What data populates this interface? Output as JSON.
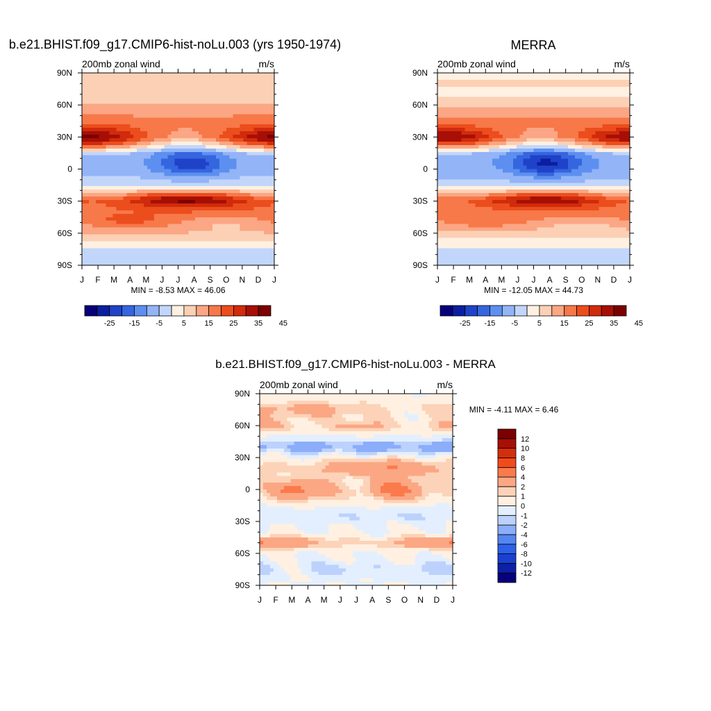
{
  "colors": {
    "abs_palette": [
      "#08007a",
      "#0a1f9f",
      "#1f42c8",
      "#3565df",
      "#5d8ff0",
      "#93b4f7",
      "#c2d6fb",
      "#fff0e1",
      "#fcd0b5",
      "#fba684",
      "#f77848",
      "#ec4d1d",
      "#d02b0c",
      "#a70f06",
      "#7b0000"
    ],
    "diff_palette": [
      "#08007a",
      "#0c20a8",
      "#1a3fd1",
      "#2e60ea",
      "#5585f4",
      "#8cadf9",
      "#bcd2fc",
      "#e3efff",
      "#fff0e1",
      "#fcd3b8",
      "#fba784",
      "#fb7a4c",
      "#f34a1b",
      "#d42f0c",
      "#a80f05",
      "#7b0000"
    ]
  },
  "chart_data": [
    {
      "type": "heatmap",
      "title": "b.e21.BHIST.f09_g17.CMIP6-hist-noLu.003 (yrs 1950-1974)",
      "left_label": "200mb zonal wind",
      "right_label": "m/s",
      "x_ticks": [
        "J",
        "F",
        "M",
        "A",
        "M",
        "J",
        "J",
        "A",
        "S",
        "O",
        "N",
        "D",
        "J"
      ],
      "y_ticks": [
        "90N",
        "60N",
        "30N",
        "0",
        "30S",
        "60S",
        "90S"
      ],
      "stats": "MIN =  -8.53 MAX =  46.06",
      "colorbar": {
        "orientation": "horizontal",
        "levels": [
          -30,
          -25,
          -20,
          -15,
          -10,
          -5,
          0,
          5,
          10,
          15,
          20,
          25,
          30,
          35,
          40,
          45,
          50
        ],
        "labels": [
          "-25",
          "-15",
          "-5",
          "5",
          "15",
          "25",
          "35",
          "45"
        ]
      },
      "features": {
        "base": [
          [
            90,
            10
          ],
          [
            75,
            7
          ],
          [
            60,
            15
          ],
          [
            45,
            22
          ],
          [
            30,
            18
          ],
          [
            15,
            -3
          ],
          [
            0,
            -2
          ],
          [
            -15,
            3
          ],
          [
            -30,
            25
          ],
          [
            -45,
            23
          ],
          [
            -60,
            15
          ],
          [
            -75,
            5
          ],
          [
            -90,
            3
          ]
        ],
        "nh_jet": {
          "amplitude": 24,
          "center_lat": 28,
          "width": 11,
          "peak_month": 0.4
        },
        "sh_jet": {
          "amplitude": 17,
          "center_lat": -28,
          "width": 8,
          "peak_month": 6.6
        },
        "easterly": {
          "amplitude": 16,
          "center_lat": 5,
          "width": 12,
          "peak_month": 6.8
        },
        "arctic_westerly": {
          "amplitude": 5,
          "center_lat": 80
        },
        "sh_midlat_ridge": {
          "amplitude": 5,
          "center_lat": -50
        }
      }
    },
    {
      "type": "heatmap",
      "title": "MERRA",
      "left_label": "200mb zonal wind",
      "right_label": "m/s",
      "x_ticks": [
        "J",
        "F",
        "M",
        "A",
        "M",
        "J",
        "J",
        "A",
        "S",
        "O",
        "N",
        "D",
        "J"
      ],
      "y_ticks": [
        "90N",
        "60N",
        "30N",
        "0",
        "30S",
        "60S",
        "90S"
      ],
      "stats": "MIN = -12.05 MAX =  44.73",
      "colorbar": {
        "orientation": "horizontal",
        "levels": [
          -30,
          -25,
          -20,
          -15,
          -10,
          -5,
          0,
          5,
          10,
          15,
          20,
          25,
          30,
          35,
          40,
          45,
          50
        ],
        "labels": [
          "-25",
          "-15",
          "-5",
          "5",
          "15",
          "25",
          "35",
          "45"
        ]
      },
      "features": {
        "base": [
          [
            90,
            8
          ],
          [
            75,
            6
          ],
          [
            60,
            14
          ],
          [
            45,
            21
          ],
          [
            30,
            18
          ],
          [
            15,
            -4
          ],
          [
            0,
            -3
          ],
          [
            -15,
            2
          ],
          [
            -30,
            24
          ],
          [
            -45,
            22
          ],
          [
            -60,
            13
          ],
          [
            -75,
            4
          ],
          [
            -90,
            2
          ]
        ],
        "nh_jet": {
          "amplitude": 23,
          "center_lat": 28,
          "width": 11,
          "peak_month": 0.4
        },
        "sh_jet": {
          "amplitude": 16,
          "center_lat": -28,
          "width": 8,
          "peak_month": 6.8
        },
        "easterly": {
          "amplitude": 18,
          "center_lat": 5,
          "width": 12,
          "peak_month": 6.8
        },
        "arctic_westerly": {
          "amplitude": 4,
          "center_lat": 80
        },
        "sh_midlat_ridge": {
          "amplitude": 4,
          "center_lat": -50
        }
      }
    },
    {
      "type": "heatmap",
      "title": "b.e21.BHIST.f09_g17.CMIP6-hist-noLu.003 - MERRA",
      "left_label": "200mb zonal wind",
      "right_label": "m/s",
      "x_ticks": [
        "J",
        "F",
        "M",
        "A",
        "M",
        "J",
        "J",
        "A",
        "S",
        "O",
        "N",
        "D",
        "J"
      ],
      "y_ticks": [
        "90N",
        "60N",
        "30N",
        "0",
        "30S",
        "60S",
        "90S"
      ],
      "stats": "MIN =  -4.11 MAX =   6.46",
      "colorbar": {
        "orientation": "vertical",
        "levels": [
          -14,
          -12,
          -10,
          -8,
          -6,
          -4,
          -2,
          -1,
          0,
          1,
          2,
          4,
          6,
          8,
          10,
          12,
          14
        ],
        "labels": [
          "-12",
          "-10",
          "-8",
          "-6",
          "-4",
          "-2",
          "-1",
          "0",
          "1",
          "2",
          "4",
          "6",
          "8",
          "10",
          "12"
        ]
      },
      "features": {
        "bands": [
          {
            "lat": 75,
            "width": 8,
            "amplitude": 1.8
          },
          {
            "lat": 60,
            "width": 6,
            "amplitude": 1.6
          },
          {
            "lat": 40,
            "width": 6,
            "amplitude": -2.6
          },
          {
            "lat": 20,
            "width": 8,
            "amplitude": 2.5
          },
          {
            "lat": 0,
            "width": 10,
            "amplitude": 3.0
          },
          {
            "lat": -25,
            "width": 7,
            "amplitude": -0.8
          },
          {
            "lat": -50,
            "width": 6,
            "amplitude": 2.6
          },
          {
            "lat": -75,
            "width": 7,
            "amplitude": -0.9
          }
        ]
      }
    }
  ]
}
